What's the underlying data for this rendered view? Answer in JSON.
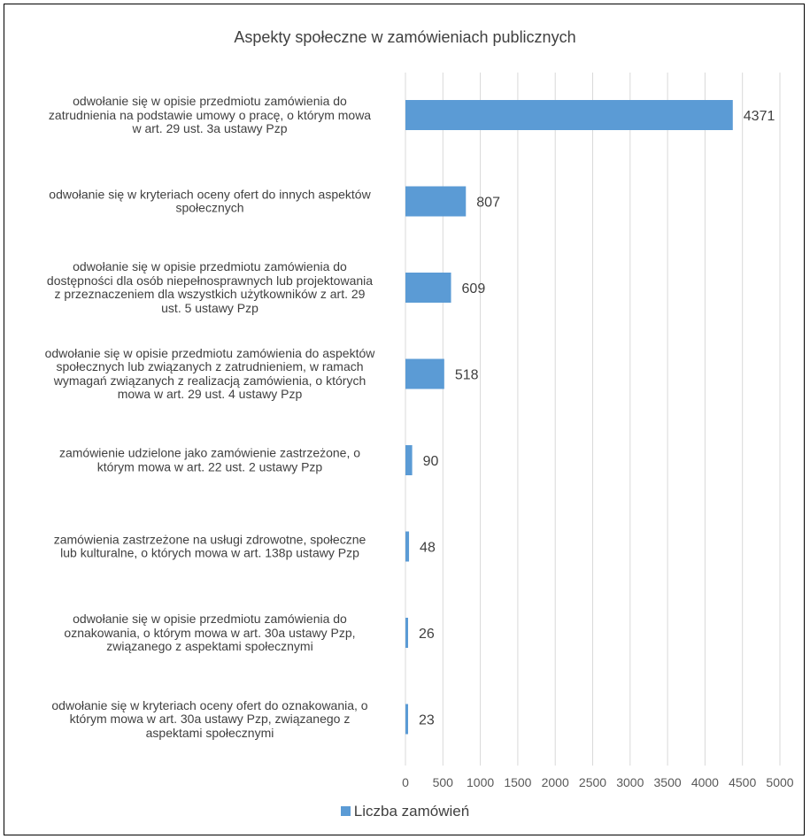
{
  "chart_data": {
    "type": "bar",
    "orientation": "horizontal",
    "title": "Aspekty społeczne w zamówieniach publicznych",
    "categories": [
      "odwołanie się w opisie przedmiotu zamówienia do zatrudnienia na podstawie umowy o pracę, o którym mowa w art. 29 ust. 3a ustawy Pzp",
      "odwołanie się w kryteriach oceny ofert do innych aspektów społecznych",
      "odwołanie się w opisie przedmiotu zamówienia do dostępności dla osób niepełnosprawnych lub projektowania z przeznaczeniem dla wszystkich użytkowników z art. 29 ust. 5 ustawy Pzp",
      "odwołanie się w opisie przedmiotu zamówienia do aspektów społecznych lub związanych z zatrudnieniem, w ramach wymagań związanych z realizacją zamówienia, o których mowa w art. 29 ust. 4 ustawy Pzp",
      "zamówienie udzielone jako zamówienie zastrzeżone, o którym mowa w art. 22 ust. 2 ustawy Pzp",
      "zamówienia zastrzeżone na usługi zdrowotne, społeczne lub kulturalne, o których mowa w art. 138p ustawy Pzp",
      "odwołanie się w opisie przedmiotu zamówienia do oznakowania, o którym mowa w art. 30a ustawy Pzp, związanego z aspektami społecznymi",
      "odwołanie się w kryteriach oceny ofert do oznakowania, o którym mowa w art. 30a ustawy Pzp, związanego z aspektami społecznymi"
    ],
    "category_lines": [
      [
        "odwołanie się w opisie przedmiotu zamówienia do",
        "zatrudnienia na podstawie umowy o pracę, o którym mowa",
        "w art. 29 ust. 3a ustawy Pzp"
      ],
      [
        "odwołanie się w kryteriach oceny ofert do innych aspektów",
        "społecznych"
      ],
      [
        "odwołanie się w opisie przedmiotu zamówienia do",
        "dostępności dla osób niepełnosprawnych lub projektowania",
        "z przeznaczeniem dla wszystkich użytkowników z art. 29",
        "ust. 5 ustawy Pzp"
      ],
      [
        "odwołanie się w opisie przedmiotu zamówienia do aspektów",
        "społecznych lub związanych z zatrudnieniem, w ramach",
        "wymagań związanych z realizacją zamówienia, o których",
        "mowa w art. 29 ust. 4 ustawy Pzp"
      ],
      [
        "zamówienie udzielone jako zamówienie zastrzeżone, o",
        "którym mowa w art. 22 ust. 2 ustawy Pzp"
      ],
      [
        "zamówienia zastrzeżone na usługi zdrowotne, społeczne",
        "lub kulturalne, o których mowa w art. 138p ustawy Pzp"
      ],
      [
        "odwołanie się w opisie przedmiotu zamówienia do",
        "oznakowania, o którym mowa w art. 30a ustawy Pzp,",
        "związanego z aspektami społecznymi"
      ],
      [
        "odwołanie się w kryteriach oceny ofert do oznakowania, o",
        "którym mowa w art. 30a ustawy Pzp, związanego z",
        "aspektami społecznymi"
      ]
    ],
    "series": [
      {
        "name": "Liczba zamówień",
        "values": [
          4371,
          807,
          609,
          518,
          90,
          48,
          26,
          23
        ]
      }
    ],
    "xlim": [
      0,
      5000
    ],
    "x_ticks": [
      0,
      500,
      1000,
      1500,
      2000,
      2500,
      3000,
      3500,
      4000,
      4500,
      5000
    ],
    "xlabel": "",
    "ylabel": "",
    "grid": "vertical",
    "legend_position": "bottom",
    "bar_color": "#5b9bd5",
    "grid_color": "#d9d9d9"
  }
}
